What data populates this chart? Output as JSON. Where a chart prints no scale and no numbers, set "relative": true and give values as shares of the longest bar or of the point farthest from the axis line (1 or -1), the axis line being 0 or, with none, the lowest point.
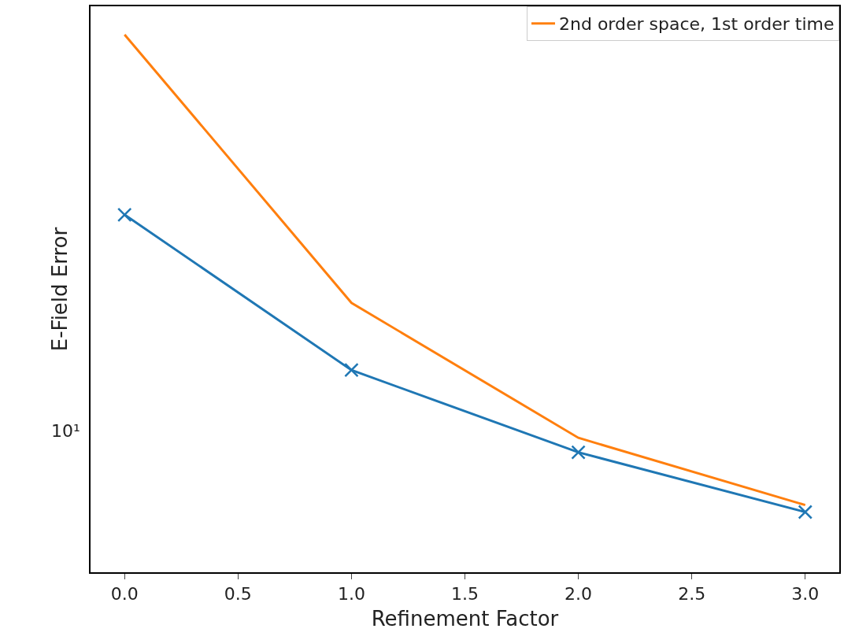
{
  "chart_data": {
    "type": "line",
    "xlabel": "Refinement Factor",
    "ylabel": "E-Field Error",
    "x": [
      0,
      1,
      2,
      3
    ],
    "relative": true,
    "series": [
      {
        "color": "#1f77b4",
        "values": [
          0.665,
          0.376,
          0.223,
          0.112
        ],
        "marker": "cross"
      },
      {
        "name": "2nd order space, 1st order time",
        "color": "#ff7f0e",
        "values": [
          1,
          0.501,
          0.25,
          0.125
        ],
        "marker": "none"
      }
    ],
    "xlim": [
      -0.15,
      3.15
    ],
    "xticks": [
      {
        "value": 0,
        "label": "0.0"
      },
      {
        "value": 0.5,
        "label": "0.5"
      },
      {
        "value": 1,
        "label": "1.0"
      },
      {
        "value": 1.5,
        "label": "1.5"
      },
      {
        "value": 2,
        "label": "2.0"
      },
      {
        "value": 2.5,
        "label": "2.5"
      },
      {
        "value": 3,
        "label": "3.0"
      }
    ],
    "annotations": [
      "10¹"
    ],
    "grid": false,
    "legend": "top right",
    "line_style": "solid"
  }
}
